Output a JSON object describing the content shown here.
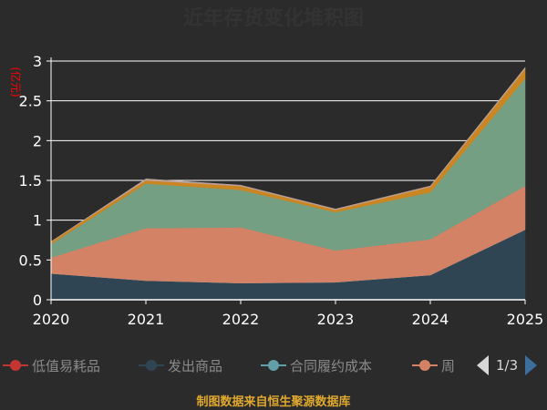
{
  "chart_data": {
    "type": "area",
    "stacked": true,
    "title": "近年存货变化堆积图",
    "ylabel": "(亿元)",
    "xlabel": "",
    "x": [
      "2020",
      "2021",
      "2022",
      "2023",
      "2024",
      "2025"
    ],
    "ylim": [
      0,
      3
    ],
    "yticks": [
      "0",
      "0.5",
      "1",
      "1.5",
      "2",
      "2.5",
      "3"
    ],
    "grid": true,
    "series": [
      {
        "name": "低值易耗品",
        "values": [
          0.0,
          0.0,
          0.0,
          0.0,
          0.0,
          0.0
        ],
        "color": "#c23531"
      },
      {
        "name": "发出商品",
        "values": [
          0.33,
          0.24,
          0.21,
          0.22,
          0.31,
          0.88
        ],
        "color": "#2f4554"
      },
      {
        "name": "合同履约成本",
        "values": [
          0.0,
          0.0,
          0.0,
          0.0,
          0.0,
          0.0
        ],
        "color": "#61a0a8"
      },
      {
        "name": "周转材料",
        "values": [
          0.2,
          0.66,
          0.7,
          0.4,
          0.45,
          0.55
        ],
        "color": "#d48265"
      },
      {
        "name": "",
        "values": [
          0.17,
          0.56,
          0.47,
          0.48,
          0.59,
          1.35
        ],
        "color": "#749f83"
      },
      {
        "name": "",
        "values": [
          0.03,
          0.04,
          0.05,
          0.03,
          0.07,
          0.12
        ],
        "color": "#ca8622"
      },
      {
        "name": "",
        "values": [
          0.0,
          0.02,
          0.01,
          0.01,
          0.01,
          0.02
        ],
        "color": "#bda29a"
      }
    ]
  },
  "legend": {
    "items": [
      {
        "label": "低值易耗品",
        "color": "#c23531"
      },
      {
        "label": "发出商品",
        "color": "#2f4554"
      },
      {
        "label": "合同履约成本",
        "color": "#61a0a8"
      },
      {
        "label": "周",
        "color": "#d48265"
      }
    ],
    "page": "1/3"
  },
  "source": "制图数据来自恒生聚源数据库",
  "colors": {
    "background": "#2b2b2b",
    "title": "#333333",
    "ylabel": "#ff0000",
    "axis_text": "#ffffff",
    "grid": "#ffffff"
  }
}
